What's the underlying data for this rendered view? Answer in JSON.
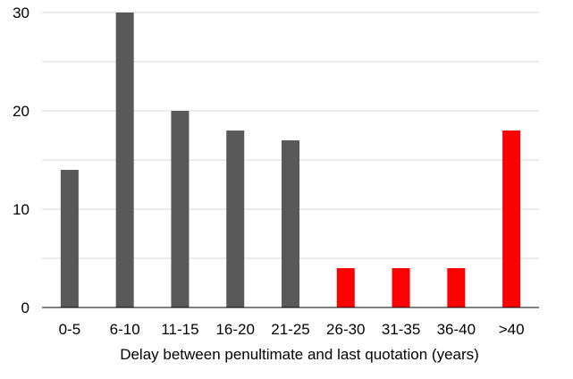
{
  "chart_data": {
    "type": "bar",
    "title": "",
    "xlabel": "Delay between penultimate and last quotation (years)",
    "ylabel": "",
    "categories": [
      "0-5",
      "6-10",
      "11-15",
      "16-20",
      "21-25",
      "26-30",
      "31-35",
      "36-40",
      ">40"
    ],
    "values": [
      14,
      30,
      20,
      18,
      17,
      4,
      4,
      4,
      18
    ],
    "bar_colors": [
      "#595959",
      "#595959",
      "#595959",
      "#595959",
      "#595959",
      "#ff0000",
      "#ff0000",
      "#ff0000",
      "#ff0000"
    ],
    "ylim": [
      0,
      30
    ],
    "yticks": [
      0,
      10,
      20,
      30
    ],
    "grid": true,
    "grid_step": 5,
    "legend": "none"
  }
}
